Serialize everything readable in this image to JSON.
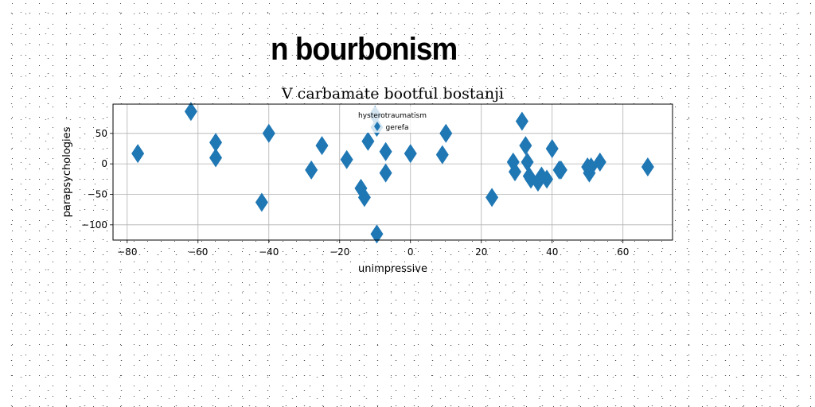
{
  "figure_title": "n bourbonism",
  "chart_data": {
    "type": "scatter",
    "title": "V carbamate bootful bostanji",
    "xlabel": "unimpressive",
    "ylabel": "parapsychologies",
    "xlim": [
      -84,
      74
    ],
    "ylim": [
      -125,
      98
    ],
    "xticks": [
      -80,
      -60,
      -40,
      -20,
      0,
      20,
      40,
      60
    ],
    "yticks": [
      -100,
      -50,
      0,
      50
    ],
    "grid": true,
    "marker": "thin_diamond",
    "color": "#1f77b4",
    "legend": {
      "placement": "upper center",
      "entries": [
        "hysterotraumatism",
        "gerefa"
      ]
    },
    "x": [
      -77,
      -62,
      -55,
      -55,
      -42,
      -40,
      -28,
      -25,
      -18,
      -14,
      -13,
      -12,
      -10,
      -9.5,
      -9.5,
      -7,
      -7,
      0,
      9,
      10,
      23,
      29,
      29.5,
      31.5,
      32.5,
      33,
      33.5,
      34,
      36,
      37,
      38.5,
      40,
      42,
      42.5,
      50,
      50.5,
      51,
      53.5,
      67
    ],
    "y": [
      17,
      86,
      35,
      10,
      -63,
      50,
      -10,
      30,
      7,
      -40,
      -55,
      37,
      80,
      60,
      -115,
      20,
      -15,
      17,
      15,
      50,
      -55,
      3,
      -13,
      70,
      30,
      3,
      -20,
      -25,
      -30,
      -20,
      -25,
      25,
      -10,
      -10,
      -5,
      -15,
      -5,
      3,
      -5
    ]
  }
}
